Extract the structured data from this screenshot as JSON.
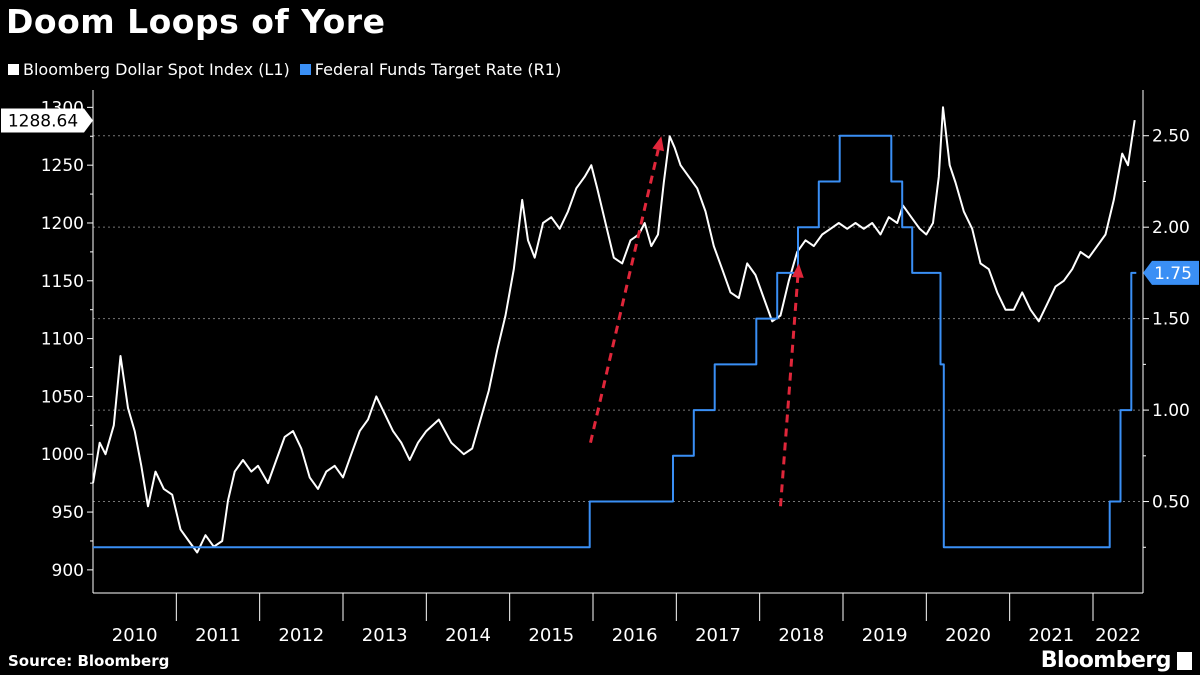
{
  "title": "Doom Loops of Yore",
  "legend": [
    {
      "label": "Bloomberg Dollar Spot Index (L1)",
      "color": "#ffffff"
    },
    {
      "label": "Federal Funds Target Rate (R1)",
      "color": "#3a8ff5"
    }
  ],
  "source": "Source: Bloomberg",
  "logo": "Bloomberg",
  "chart_data": {
    "type": "line",
    "x_range": [
      2010.0,
      2022.6
    ],
    "years": [
      "2010",
      "2011",
      "2012",
      "2013",
      "2014",
      "2015",
      "2016",
      "2017",
      "2018",
      "2019",
      "2020",
      "2021",
      "2022"
    ],
    "left_axis": {
      "ticks": [
        900,
        950,
        1000,
        1050,
        1100,
        1150,
        1200,
        1250,
        1300
      ],
      "range": [
        880,
        1315
      ]
    },
    "right_axis": {
      "ticks": [
        "0.50",
        "1.00",
        "1.50",
        "2.00",
        "2.50"
      ],
      "range": [
        0.0,
        2.75
      ]
    },
    "last_value_left": "1288.64",
    "last_value_right": "1.75",
    "series": [
      {
        "name": "Bloomberg Dollar Spot Index (L1)",
        "axis": "left",
        "color": "#ffffff",
        "points": [
          [
            2010.0,
            975
          ],
          [
            2010.08,
            1010
          ],
          [
            2010.15,
            1000
          ],
          [
            2010.25,
            1025
          ],
          [
            2010.33,
            1085
          ],
          [
            2010.42,
            1040
          ],
          [
            2010.5,
            1020
          ],
          [
            2010.58,
            990
          ],
          [
            2010.66,
            955
          ],
          [
            2010.75,
            985
          ],
          [
            2010.85,
            970
          ],
          [
            2010.95,
            965
          ],
          [
            2011.05,
            935
          ],
          [
            2011.15,
            925
          ],
          [
            2011.25,
            915
          ],
          [
            2011.35,
            930
          ],
          [
            2011.45,
            920
          ],
          [
            2011.55,
            925
          ],
          [
            2011.62,
            960
          ],
          [
            2011.7,
            985
          ],
          [
            2011.8,
            995
          ],
          [
            2011.9,
            985
          ],
          [
            2011.98,
            990
          ],
          [
            2012.1,
            975
          ],
          [
            2012.2,
            995
          ],
          [
            2012.3,
            1015
          ],
          [
            2012.4,
            1020
          ],
          [
            2012.5,
            1005
          ],
          [
            2012.6,
            980
          ],
          [
            2012.7,
            970
          ],
          [
            2012.8,
            985
          ],
          [
            2012.9,
            990
          ],
          [
            2013.0,
            980
          ],
          [
            2013.1,
            1000
          ],
          [
            2013.2,
            1020
          ],
          [
            2013.3,
            1030
          ],
          [
            2013.4,
            1050
          ],
          [
            2013.5,
            1035
          ],
          [
            2013.6,
            1020
          ],
          [
            2013.7,
            1010
          ],
          [
            2013.8,
            995
          ],
          [
            2013.9,
            1010
          ],
          [
            2014.0,
            1020
          ],
          [
            2014.15,
            1030
          ],
          [
            2014.3,
            1010
          ],
          [
            2014.45,
            1000
          ],
          [
            2014.55,
            1005
          ],
          [
            2014.65,
            1030
          ],
          [
            2014.75,
            1055
          ],
          [
            2014.85,
            1090
          ],
          [
            2014.95,
            1120
          ],
          [
            2015.05,
            1160
          ],
          [
            2015.15,
            1220
          ],
          [
            2015.22,
            1185
          ],
          [
            2015.3,
            1170
          ],
          [
            2015.4,
            1200
          ],
          [
            2015.5,
            1205
          ],
          [
            2015.6,
            1195
          ],
          [
            2015.7,
            1210
          ],
          [
            2015.8,
            1230
          ],
          [
            2015.9,
            1240
          ],
          [
            2015.98,
            1250
          ],
          [
            2016.05,
            1230
          ],
          [
            2016.15,
            1200
          ],
          [
            2016.25,
            1170
          ],
          [
            2016.35,
            1165
          ],
          [
            2016.45,
            1185
          ],
          [
            2016.55,
            1190
          ],
          [
            2016.62,
            1200
          ],
          [
            2016.7,
            1180
          ],
          [
            2016.78,
            1190
          ],
          [
            2016.85,
            1235
          ],
          [
            2016.92,
            1275
          ],
          [
            2016.98,
            1265
          ],
          [
            2017.05,
            1250
          ],
          [
            2017.15,
            1240
          ],
          [
            2017.25,
            1230
          ],
          [
            2017.35,
            1210
          ],
          [
            2017.45,
            1180
          ],
          [
            2017.55,
            1160
          ],
          [
            2017.65,
            1140
          ],
          [
            2017.75,
            1135
          ],
          [
            2017.85,
            1165
          ],
          [
            2017.95,
            1155
          ],
          [
            2018.05,
            1135
          ],
          [
            2018.15,
            1115
          ],
          [
            2018.25,
            1120
          ],
          [
            2018.35,
            1150
          ],
          [
            2018.45,
            1175
          ],
          [
            2018.55,
            1185
          ],
          [
            2018.65,
            1180
          ],
          [
            2018.75,
            1190
          ],
          [
            2018.85,
            1195
          ],
          [
            2018.95,
            1200
          ],
          [
            2019.05,
            1195
          ],
          [
            2019.15,
            1200
          ],
          [
            2019.25,
            1195
          ],
          [
            2019.35,
            1200
          ],
          [
            2019.45,
            1190
          ],
          [
            2019.55,
            1205
          ],
          [
            2019.65,
            1200
          ],
          [
            2019.72,
            1215
          ],
          [
            2019.82,
            1205
          ],
          [
            2019.92,
            1195
          ],
          [
            2020.0,
            1190
          ],
          [
            2020.08,
            1200
          ],
          [
            2020.15,
            1240
          ],
          [
            2020.2,
            1300
          ],
          [
            2020.28,
            1250
          ],
          [
            2020.35,
            1235
          ],
          [
            2020.45,
            1210
          ],
          [
            2020.55,
            1195
          ],
          [
            2020.65,
            1165
          ],
          [
            2020.75,
            1160
          ],
          [
            2020.85,
            1140
          ],
          [
            2020.95,
            1125
          ],
          [
            2021.05,
            1125
          ],
          [
            2021.15,
            1140
          ],
          [
            2021.25,
            1125
          ],
          [
            2021.35,
            1115
          ],
          [
            2021.45,
            1130
          ],
          [
            2021.55,
            1145
          ],
          [
            2021.65,
            1150
          ],
          [
            2021.75,
            1160
          ],
          [
            2021.85,
            1175
          ],
          [
            2021.95,
            1170
          ],
          [
            2022.05,
            1180
          ],
          [
            2022.15,
            1190
          ],
          [
            2022.25,
            1220
          ],
          [
            2022.35,
            1260
          ],
          [
            2022.42,
            1250
          ],
          [
            2022.5,
            1289
          ]
        ]
      },
      {
        "name": "Federal Funds Target Rate (R1)",
        "axis": "right",
        "color": "#3a8ff5",
        "step": true,
        "points": [
          [
            2010.0,
            0.25
          ],
          [
            2015.96,
            0.25
          ],
          [
            2015.96,
            0.5
          ],
          [
            2016.96,
            0.5
          ],
          [
            2016.96,
            0.75
          ],
          [
            2017.21,
            0.75
          ],
          [
            2017.21,
            1.0
          ],
          [
            2017.46,
            1.0
          ],
          [
            2017.46,
            1.25
          ],
          [
            2017.96,
            1.25
          ],
          [
            2017.96,
            1.5
          ],
          [
            2018.21,
            1.5
          ],
          [
            2018.21,
            1.75
          ],
          [
            2018.46,
            1.75
          ],
          [
            2018.46,
            2.0
          ],
          [
            2018.71,
            2.0
          ],
          [
            2018.71,
            2.25
          ],
          [
            2018.96,
            2.25
          ],
          [
            2018.96,
            2.5
          ],
          [
            2019.58,
            2.5
          ],
          [
            2019.58,
            2.25
          ],
          [
            2019.71,
            2.25
          ],
          [
            2019.71,
            2.0
          ],
          [
            2019.83,
            2.0
          ],
          [
            2019.83,
            1.75
          ],
          [
            2020.17,
            1.75
          ],
          [
            2020.17,
            1.25
          ],
          [
            2020.21,
            1.25
          ],
          [
            2020.21,
            0.25
          ],
          [
            2022.2,
            0.25
          ],
          [
            2022.2,
            0.5
          ],
          [
            2022.33,
            0.5
          ],
          [
            2022.33,
            1.0
          ],
          [
            2022.46,
            1.0
          ],
          [
            2022.46,
            1.75
          ],
          [
            2022.52,
            1.75
          ]
        ]
      }
    ],
    "annotations": [
      {
        "type": "arrow",
        "color": "#e0263a",
        "dashed": true,
        "from": [
          2015.97,
          1010
        ],
        "to": [
          2016.82,
          1275
        ]
      },
      {
        "type": "arrow",
        "color": "#e0263a",
        "dashed": true,
        "from": [
          2018.25,
          955
        ],
        "to": [
          2018.47,
          1165
        ]
      }
    ]
  }
}
